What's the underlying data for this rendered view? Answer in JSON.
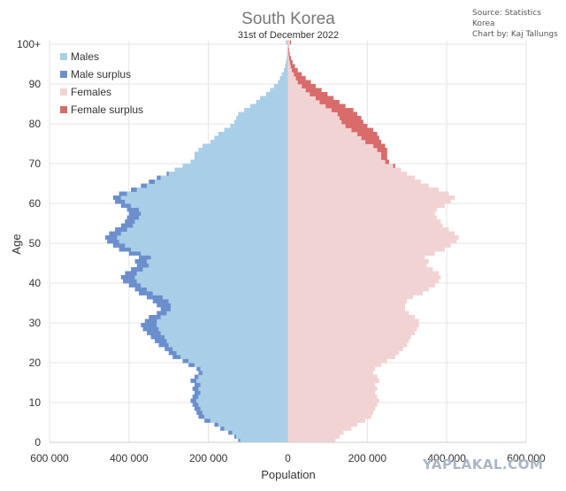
{
  "chart_data": {
    "type": "bar",
    "orientation": "horizontal",
    "title": "South Korea",
    "subtitle": "31st of December 2022",
    "xlabel": "Population",
    "ylabel": "Age",
    "xlim": [
      -600000,
      600000
    ],
    "ylim": [
      0,
      100
    ],
    "xticks": [
      -600000,
      -400000,
      -200000,
      0,
      200000,
      400000,
      600000
    ],
    "xtick_labels": [
      "600 000",
      "400 000",
      "200 000",
      "0",
      "200 000",
      "400 000",
      "600 000"
    ],
    "yticks": [
      0,
      10,
      20,
      30,
      40,
      50,
      60,
      70,
      80,
      90,
      100
    ],
    "ytick_labels": [
      "0",
      "10",
      "20",
      "30",
      "40",
      "50",
      "60",
      "70",
      "80",
      "90",
      "100+"
    ],
    "grid": true,
    "legend_position": "top-left",
    "legend": [
      "Males",
      "Male surplus",
      "Females",
      "Female surplus"
    ],
    "colors": {
      "males": "#a9cfe8",
      "male_surplus": "#6b8fcc",
      "females": "#f2d3d4",
      "female_surplus": "#d96b6b",
      "grid": "#e4e4e4",
      "title": "#777777",
      "text": "#333333"
    },
    "source": "Source: Statistics Korea",
    "credit": "Chart by: Kaj Tallungs",
    "ages": [
      0,
      1,
      2,
      3,
      4,
      5,
      6,
      7,
      8,
      9,
      10,
      11,
      12,
      13,
      14,
      15,
      16,
      17,
      18,
      19,
      20,
      21,
      22,
      23,
      24,
      25,
      26,
      27,
      28,
      29,
      30,
      31,
      32,
      33,
      34,
      35,
      36,
      37,
      38,
      39,
      40,
      41,
      42,
      43,
      44,
      45,
      46,
      47,
      48,
      49,
      50,
      51,
      52,
      53,
      54,
      55,
      56,
      57,
      58,
      59,
      60,
      61,
      62,
      63,
      64,
      65,
      66,
      67,
      68,
      69,
      70,
      71,
      72,
      73,
      74,
      75,
      76,
      77,
      78,
      79,
      80,
      81,
      82,
      83,
      84,
      85,
      86,
      87,
      88,
      89,
      90,
      91,
      92,
      93,
      94,
      95,
      96,
      97,
      98,
      99,
      100
    ],
    "series": [
      {
        "name": "Males",
        "values": [
          125000,
          135000,
          150000,
          170000,
          185000,
          210000,
          225000,
          230000,
          235000,
          240000,
          245000,
          240000,
          235000,
          240000,
          235000,
          245000,
          235000,
          225000,
          230000,
          250000,
          265000,
          290000,
          300000,
          310000,
          325000,
          335000,
          345000,
          355000,
          365000,
          370000,
          360000,
          350000,
          330000,
          320000,
          330000,
          340000,
          355000,
          375000,
          385000,
          400000,
          415000,
          420000,
          410000,
          395000,
          380000,
          385000,
          375000,
          400000,
          425000,
          440000,
          455000,
          460000,
          450000,
          435000,
          420000,
          410000,
          405000,
          400000,
          405000,
          420000,
          435000,
          440000,
          425000,
          395000,
          370000,
          350000,
          330000,
          305000,
          285000,
          265000,
          245000,
          235000,
          235000,
          225000,
          215000,
          195000,
          185000,
          175000,
          160000,
          145000,
          135000,
          130000,
          125000,
          110000,
          95000,
          80000,
          70000,
          55000,
          45000,
          35000,
          25000,
          20000,
          15000,
          10000,
          7000,
          5000,
          3000,
          2000,
          1500,
          1000,
          5000
        ]
      },
      {
        "name": "Females",
        "values": [
          120000,
          130000,
          140000,
          160000,
          175000,
          195000,
          210000,
          215000,
          220000,
          225000,
          230000,
          225000,
          220000,
          225000,
          220000,
          230000,
          225000,
          215000,
          220000,
          235000,
          250000,
          270000,
          280000,
          290000,
          300000,
          305000,
          310000,
          320000,
          325000,
          330000,
          330000,
          320000,
          305000,
          295000,
          295000,
          300000,
          315000,
          340000,
          355000,
          370000,
          380000,
          385000,
          380000,
          365000,
          350000,
          355000,
          345000,
          370000,
          395000,
          410000,
          425000,
          430000,
          420000,
          405000,
          390000,
          385000,
          375000,
          370000,
          375000,
          395000,
          410000,
          420000,
          405000,
          380000,
          355000,
          335000,
          320000,
          300000,
          285000,
          270000,
          255000,
          250000,
          250000,
          250000,
          245000,
          235000,
          230000,
          225000,
          215000,
          200000,
          190000,
          185000,
          175000,
          165000,
          145000,
          130000,
          115000,
          100000,
          85000,
          70000,
          58000,
          45000,
          35000,
          25000,
          18000,
          12000,
          8000,
          5000,
          3500,
          2000,
          8000
        ]
      }
    ]
  }
}
